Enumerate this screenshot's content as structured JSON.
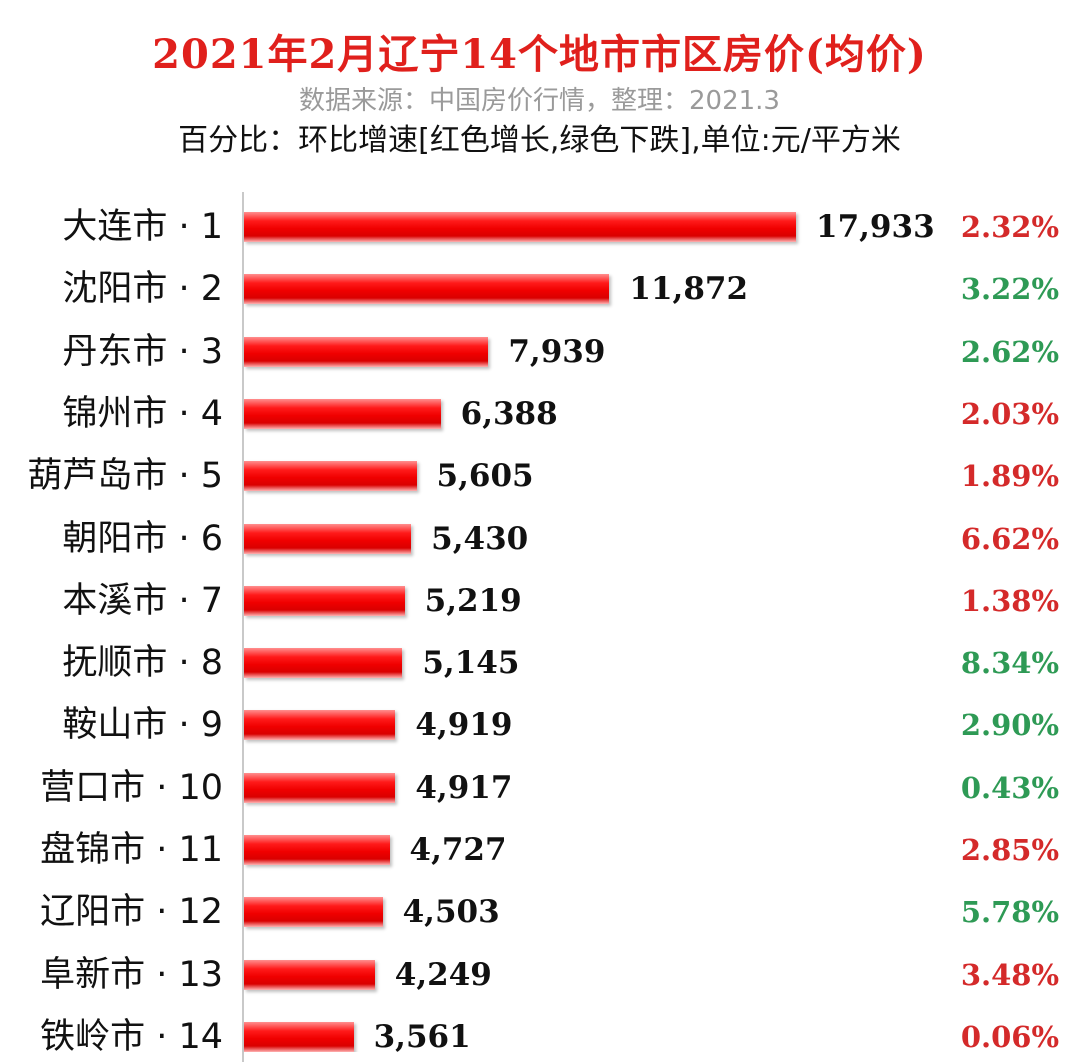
{
  "chart_data": {
    "type": "bar",
    "orientation": "horizontal",
    "title": "2021年2月辽宁14个地市市区房价(均价)",
    "source": "数据来源：中国房价行情，整理：2021.3",
    "subtitle": "百分比：环比增速[红色增长,绿色下跌],单位:元/平方米",
    "categories": [
      "大连市 · 1",
      "沈阳市 · 2",
      "丹东市 · 3",
      "锦州市 · 4",
      "葫芦岛市 · 5",
      "朝阳市 · 6",
      "本溪市 · 7",
      "抚顺市 · 8",
      "鞍山市 · 9",
      "营口市 · 10",
      "盘锦市 · 11",
      "辽阳市 · 12",
      "阜新市 · 13",
      "铁岭市 · 14"
    ],
    "values": [
      17933,
      11872,
      7939,
      6388,
      5605,
      5430,
      5219,
      5145,
      4919,
      4917,
      4727,
      4503,
      4249,
      3561
    ],
    "value_labels": [
      "17,933",
      "11,872",
      "7,939",
      "6,388",
      "5,605",
      "5,430",
      "5,219",
      "5,145",
      "4,919",
      "4,917",
      "4,727",
      "4,503",
      "4,249",
      "3,561"
    ],
    "change_labels": [
      "2.32%",
      "3.22%",
      "2.62%",
      "2.03%",
      "1.89%",
      "6.62%",
      "1.38%",
      "8.34%",
      "2.90%",
      "0.43%",
      "2.85%",
      "5.78%",
      "3.48%",
      "0.06%"
    ],
    "change_trend": [
      "up",
      "down",
      "down",
      "up",
      "up",
      "up",
      "up",
      "down",
      "down",
      "down",
      "up",
      "down",
      "up",
      "up"
    ],
    "bar_color": "#ee0000",
    "up_color": "#d42a2a",
    "down_color": "#2e9a55",
    "xlim": [
      0,
      18000
    ],
    "grid": false,
    "legend": "none"
  }
}
